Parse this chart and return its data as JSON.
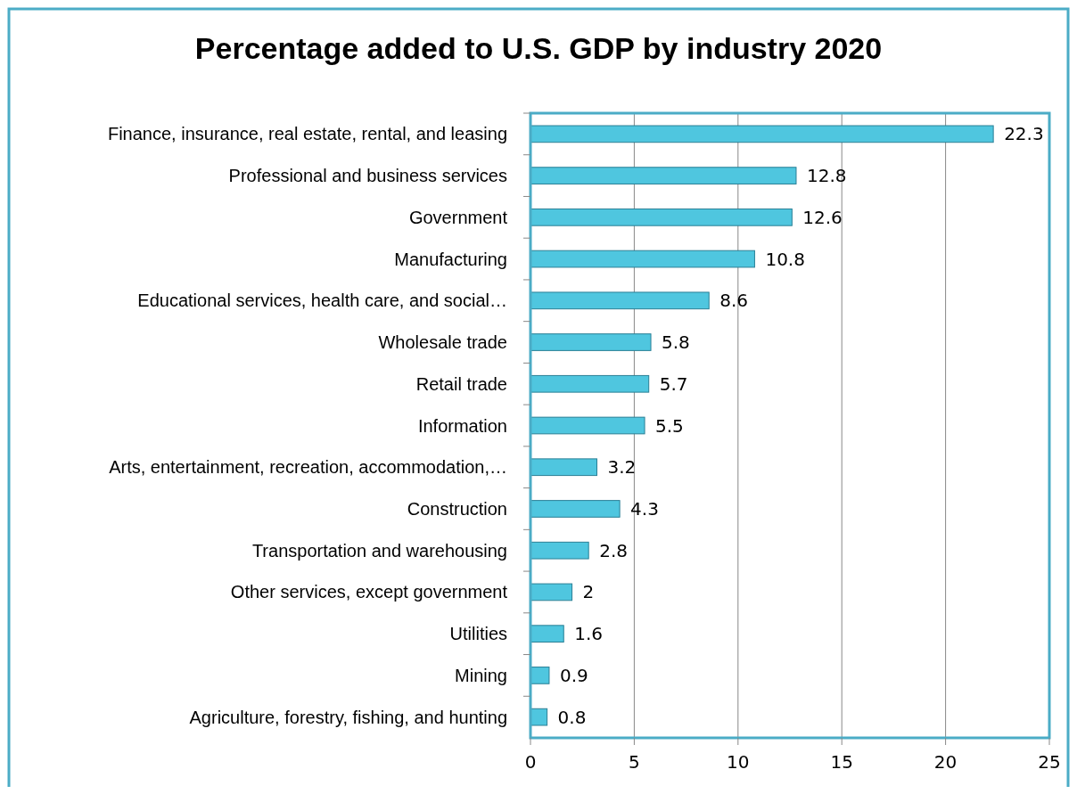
{
  "chart_data": {
    "type": "bar",
    "orientation": "horizontal",
    "title": "Percentage added to U.S. GDP by industry 2020",
    "categories": [
      "Finance, insurance, real estate, rental, and leasing",
      "Professional and business services",
      "Government",
      "Manufacturing",
      "Educational services, health care, and social…",
      "Wholesale trade",
      "Retail trade",
      "Information",
      "Arts, entertainment, recreation, accommodation,…",
      "Construction",
      "Transportation and warehousing",
      "Other services, except government",
      "Utilities",
      "Mining",
      "Agriculture, forestry, fishing, and hunting"
    ],
    "values": [
      22.3,
      12.8,
      12.6,
      10.8,
      8.6,
      5.8,
      5.7,
      5.5,
      3.2,
      4.3,
      2.8,
      2,
      1.6,
      0.9,
      0.8
    ],
    "color": "#4fc6df",
    "xlim": [
      0,
      25
    ],
    "xticks": [
      0,
      5,
      10,
      15,
      20,
      25
    ],
    "grid": "x",
    "data_labels": true
  }
}
